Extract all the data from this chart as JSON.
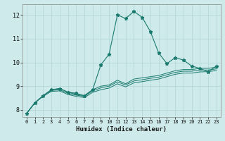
{
  "xlabel": "Humidex (Indice chaleur)",
  "bg_color": "#ceeaea",
  "line_color": "#1a7a6e",
  "grid_color": "#b0d5d5",
  "xlim": [
    -0.5,
    23.5
  ],
  "ylim": [
    7.7,
    12.45
  ],
  "yticks": [
    8,
    9,
    10,
    11,
    12
  ],
  "xticks": [
    0,
    1,
    2,
    3,
    4,
    5,
    6,
    7,
    8,
    9,
    10,
    11,
    12,
    13,
    14,
    15,
    16,
    17,
    18,
    19,
    20,
    21,
    22,
    23
  ],
  "series": [
    [
      7.85,
      8.3,
      8.6,
      8.85,
      8.9,
      8.75,
      8.7,
      8.6,
      8.85,
      9.9,
      10.35,
      12.0,
      11.85,
      12.15,
      11.9,
      11.3,
      10.4,
      9.95,
      10.2,
      10.1,
      9.85,
      9.75,
      9.6,
      9.85
    ],
    [
      7.85,
      8.3,
      8.6,
      8.85,
      8.9,
      8.75,
      8.65,
      8.6,
      8.85,
      9.0,
      9.05,
      9.25,
      9.1,
      9.3,
      9.35,
      9.4,
      9.45,
      9.55,
      9.65,
      9.7,
      9.7,
      9.75,
      9.75,
      9.8
    ],
    [
      7.85,
      8.3,
      8.6,
      8.82,
      8.85,
      8.7,
      8.62,
      8.57,
      8.8,
      8.93,
      9.0,
      9.18,
      9.05,
      9.22,
      9.27,
      9.33,
      9.38,
      9.48,
      9.58,
      9.63,
      9.63,
      9.68,
      9.68,
      9.73
    ],
    [
      7.85,
      8.3,
      8.57,
      8.78,
      8.8,
      8.65,
      8.57,
      8.52,
      8.74,
      8.85,
      8.92,
      9.1,
      8.97,
      9.14,
      9.19,
      9.25,
      9.3,
      9.4,
      9.5,
      9.55,
      9.55,
      9.6,
      9.61,
      9.66
    ]
  ]
}
